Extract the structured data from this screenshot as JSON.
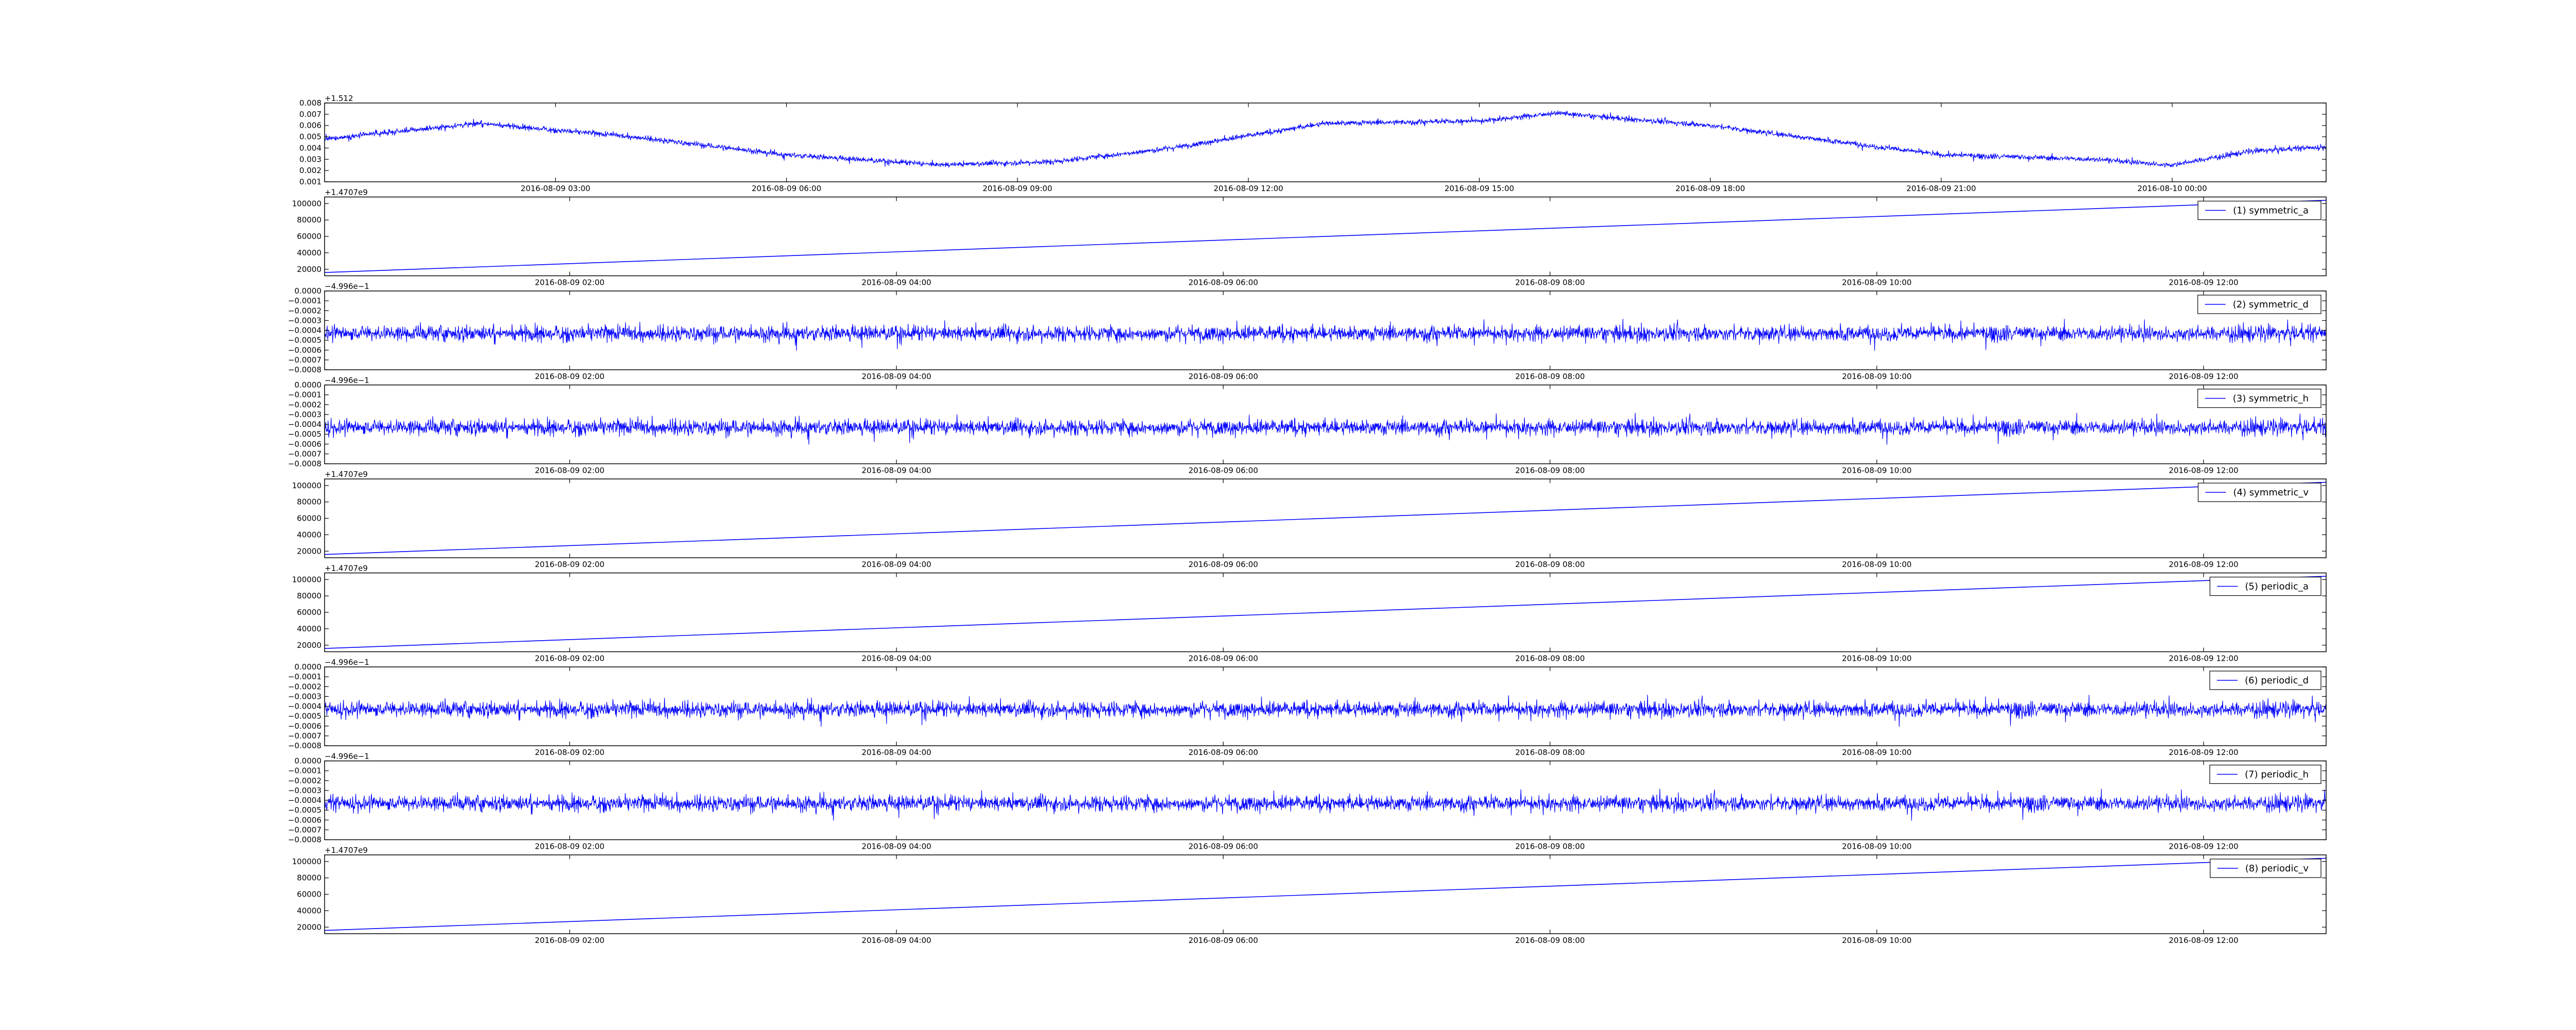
{
  "chart_data": [
    {
      "type": "line",
      "offset_text": "+1.512",
      "x_domain": [
        "2016-08-09 00:00",
        "2016-08-10 02:00"
      ],
      "x_ticks": [
        {
          "x": "2016-08-09 03:00",
          "label": "2016-08-09 03:00"
        },
        {
          "x": "2016-08-09 06:00",
          "label": "2016-08-09 06:00"
        },
        {
          "x": "2016-08-09 09:00",
          "label": "2016-08-09 09:00"
        },
        {
          "x": "2016-08-09 12:00",
          "label": "2016-08-09 12:00"
        },
        {
          "x": "2016-08-09 15:00",
          "label": "2016-08-09 15:00"
        },
        {
          "x": "2016-08-09 18:00",
          "label": "2016-08-09 18:00"
        },
        {
          "x": "2016-08-09 21:00",
          "label": "2016-08-09 21:00"
        },
        {
          "x": "2016-08-10 00:00",
          "label": "2016-08-10 00:00"
        }
      ],
      "ylim": [
        0.001,
        0.008
      ],
      "y_ticks": [
        "0.001",
        "0.002",
        "0.003",
        "0.004",
        "0.005",
        "0.006",
        "0.007",
        "0.008"
      ],
      "legend": "",
      "series": [
        {
          "kind": "noisy",
          "x": [
            "2016-08-09 00:00",
            "2016-08-09 02:00",
            "2016-08-09 04:00",
            "2016-08-09 06:00",
            "2016-08-09 08:00",
            "2016-08-09 09:30",
            "2016-08-09 11:00",
            "2016-08-09 13:00",
            "2016-08-09 15:00",
            "2016-08-09 16:00",
            "2016-08-09 18:00",
            "2016-08-09 21:00",
            "2016-08-09 23:00",
            "2016-08-10 00:00",
            "2016-08-10 01:00",
            "2016-08-10 02:00"
          ],
          "y": [
            0.0048,
            0.0062,
            0.005,
            0.0034,
            0.0025,
            0.0028,
            0.004,
            0.0062,
            0.0064,
            0.0071,
            0.006,
            0.0034,
            0.003,
            0.0025,
            0.0037,
            0.0041
          ],
          "noise": 0.0004
        }
      ]
    },
    {
      "type": "line",
      "offset_text": "+1.4707e9",
      "x_domain": [
        "2016-08-09 00:30",
        "2016-08-09 12:45"
      ],
      "x_ticks": [
        {
          "x": "2016-08-09 02:00",
          "label": "2016-08-09 02:00"
        },
        {
          "x": "2016-08-09 04:00",
          "label": "2016-08-09 04:00"
        },
        {
          "x": "2016-08-09 06:00",
          "label": "2016-08-09 06:00"
        },
        {
          "x": "2016-08-09 08:00",
          "label": "2016-08-09 08:00"
        },
        {
          "x": "2016-08-09 10:00",
          "label": "2016-08-09 10:00"
        },
        {
          "x": "2016-08-09 12:00",
          "label": "2016-08-09 12:00"
        }
      ],
      "ylim": [
        12000,
        108000
      ],
      "y_ticks": [
        "20000",
        "40000",
        "60000",
        "80000",
        "100000"
      ],
      "legend": "(1) symmetric_a",
      "series": [
        {
          "kind": "linear",
          "x": [
            "2016-08-09 00:30",
            "2016-08-09 12:45"
          ],
          "y": [
            16000,
            104000
          ]
        }
      ]
    },
    {
      "type": "line",
      "offset_text": "−4.996e−1",
      "x_domain": [
        "2016-08-09 00:30",
        "2016-08-09 12:45"
      ],
      "x_ticks": [
        {
          "x": "2016-08-09 02:00",
          "label": "2016-08-09 02:00"
        },
        {
          "x": "2016-08-09 04:00",
          "label": "2016-08-09 04:00"
        },
        {
          "x": "2016-08-09 06:00",
          "label": "2016-08-09 06:00"
        },
        {
          "x": "2016-08-09 08:00",
          "label": "2016-08-09 08:00"
        },
        {
          "x": "2016-08-09 10:00",
          "label": "2016-08-09 10:00"
        },
        {
          "x": "2016-08-09 12:00",
          "label": "2016-08-09 12:00"
        }
      ],
      "ylim": [
        -0.0008,
        0.0
      ],
      "y_ticks": [
        "−0.0008",
        "−0.0007",
        "−0.0006",
        "−0.0005",
        "−0.0004",
        "−0.0003",
        "−0.0002",
        "−0.0001",
        "0.0000"
      ],
      "legend": "(2) symmetric_d",
      "series": [
        {
          "kind": "noisy",
          "x": [
            "2016-08-09 00:30",
            "2016-08-09 12:45"
          ],
          "y": [
            -0.00043,
            -0.00043
          ],
          "noise": 0.00013
        }
      ]
    },
    {
      "type": "line",
      "offset_text": "−4.996e−1",
      "x_domain": [
        "2016-08-09 00:30",
        "2016-08-09 12:45"
      ],
      "x_ticks": [
        {
          "x": "2016-08-09 02:00",
          "label": "2016-08-09 02:00"
        },
        {
          "x": "2016-08-09 04:00",
          "label": "2016-08-09 04:00"
        },
        {
          "x": "2016-08-09 06:00",
          "label": "2016-08-09 06:00"
        },
        {
          "x": "2016-08-09 08:00",
          "label": "2016-08-09 08:00"
        },
        {
          "x": "2016-08-09 10:00",
          "label": "2016-08-09 10:00"
        },
        {
          "x": "2016-08-09 12:00",
          "label": "2016-08-09 12:00"
        }
      ],
      "ylim": [
        -0.0008,
        0.0
      ],
      "y_ticks": [
        "−0.0008",
        "−0.0007",
        "−0.0006",
        "−0.0005",
        "−0.0004",
        "−0.0003",
        "−0.0002",
        "−0.0001",
        "0.0000"
      ],
      "legend": "(3) symmetric_h",
      "series": [
        {
          "kind": "noisy",
          "x": [
            "2016-08-09 00:30",
            "2016-08-09 12:45"
          ],
          "y": [
            -0.00043,
            -0.00043
          ],
          "noise": 0.00013
        }
      ]
    },
    {
      "type": "line",
      "offset_text": "+1.4707e9",
      "x_domain": [
        "2016-08-09 00:30",
        "2016-08-09 12:45"
      ],
      "x_ticks": [
        {
          "x": "2016-08-09 02:00",
          "label": "2016-08-09 02:00"
        },
        {
          "x": "2016-08-09 04:00",
          "label": "2016-08-09 04:00"
        },
        {
          "x": "2016-08-09 06:00",
          "label": "2016-08-09 06:00"
        },
        {
          "x": "2016-08-09 08:00",
          "label": "2016-08-09 08:00"
        },
        {
          "x": "2016-08-09 10:00",
          "label": "2016-08-09 10:00"
        },
        {
          "x": "2016-08-09 12:00",
          "label": "2016-08-09 12:00"
        }
      ],
      "ylim": [
        12000,
        108000
      ],
      "y_ticks": [
        "20000",
        "40000",
        "60000",
        "80000",
        "100000"
      ],
      "legend": "(4) symmetric_v",
      "series": [
        {
          "kind": "linear",
          "x": [
            "2016-08-09 00:30",
            "2016-08-09 12:45"
          ],
          "y": [
            16000,
            104000
          ]
        }
      ]
    },
    {
      "type": "line",
      "offset_text": "+1.4707e9",
      "x_domain": [
        "2016-08-09 00:30",
        "2016-08-09 12:45"
      ],
      "x_ticks": [
        {
          "x": "2016-08-09 02:00",
          "label": "2016-08-09 02:00"
        },
        {
          "x": "2016-08-09 04:00",
          "label": "2016-08-09 04:00"
        },
        {
          "x": "2016-08-09 06:00",
          "label": "2016-08-09 06:00"
        },
        {
          "x": "2016-08-09 08:00",
          "label": "2016-08-09 08:00"
        },
        {
          "x": "2016-08-09 10:00",
          "label": "2016-08-09 10:00"
        },
        {
          "x": "2016-08-09 12:00",
          "label": "2016-08-09 12:00"
        }
      ],
      "ylim": [
        12000,
        108000
      ],
      "y_ticks": [
        "20000",
        "40000",
        "60000",
        "80000",
        "100000"
      ],
      "legend": "(5) periodic_a",
      "series": [
        {
          "kind": "linear",
          "x": [
            "2016-08-09 00:30",
            "2016-08-09 12:45"
          ],
          "y": [
            16000,
            104000
          ]
        }
      ]
    },
    {
      "type": "line",
      "offset_text": "−4.996e−1",
      "x_domain": [
        "2016-08-09 00:30",
        "2016-08-09 12:45"
      ],
      "x_ticks": [
        {
          "x": "2016-08-09 02:00",
          "label": "2016-08-09 02:00"
        },
        {
          "x": "2016-08-09 04:00",
          "label": "2016-08-09 04:00"
        },
        {
          "x": "2016-08-09 06:00",
          "label": "2016-08-09 06:00"
        },
        {
          "x": "2016-08-09 08:00",
          "label": "2016-08-09 08:00"
        },
        {
          "x": "2016-08-09 10:00",
          "label": "2016-08-09 10:00"
        },
        {
          "x": "2016-08-09 12:00",
          "label": "2016-08-09 12:00"
        }
      ],
      "ylim": [
        -0.0008,
        0.0
      ],
      "y_ticks": [
        "−0.0008",
        "−0.0007",
        "−0.0006",
        "−0.0005",
        "−0.0004",
        "−0.0003",
        "−0.0002",
        "−0.0001",
        "0.0000"
      ],
      "legend": "(6) periodic_d",
      "series": [
        {
          "kind": "noisy",
          "x": [
            "2016-08-09 00:30",
            "2016-08-09 12:45"
          ],
          "y": [
            -0.00043,
            -0.00043
          ],
          "noise": 0.00013
        }
      ]
    },
    {
      "type": "line",
      "offset_text": "−4.996e−1",
      "x_domain": [
        "2016-08-09 00:30",
        "2016-08-09 12:45"
      ],
      "x_ticks": [
        {
          "x": "2016-08-09 02:00",
          "label": "2016-08-09 02:00"
        },
        {
          "x": "2016-08-09 04:00",
          "label": "2016-08-09 04:00"
        },
        {
          "x": "2016-08-09 06:00",
          "label": "2016-08-09 06:00"
        },
        {
          "x": "2016-08-09 08:00",
          "label": "2016-08-09 08:00"
        },
        {
          "x": "2016-08-09 10:00",
          "label": "2016-08-09 10:00"
        },
        {
          "x": "2016-08-09 12:00",
          "label": "2016-08-09 12:00"
        }
      ],
      "ylim": [
        -0.0008,
        0.0
      ],
      "y_ticks": [
        "−0.0008",
        "−0.0007",
        "−0.0006",
        "−0.0005",
        "−0.0004",
        "−0.0003",
        "−0.0002",
        "−0.0001",
        "0.0000"
      ],
      "legend": "(7) periodic_h",
      "series": [
        {
          "kind": "noisy",
          "x": [
            "2016-08-09 00:30",
            "2016-08-09 12:45"
          ],
          "y": [
            -0.00043,
            -0.00043
          ],
          "noise": 0.00013
        }
      ]
    },
    {
      "type": "line",
      "offset_text": "+1.4707e9",
      "x_domain": [
        "2016-08-09 00:30",
        "2016-08-09 12:45"
      ],
      "x_ticks": [
        {
          "x": "2016-08-09 02:00",
          "label": "2016-08-09 02:00"
        },
        {
          "x": "2016-08-09 04:00",
          "label": "2016-08-09 04:00"
        },
        {
          "x": "2016-08-09 06:00",
          "label": "2016-08-09 06:00"
        },
        {
          "x": "2016-08-09 08:00",
          "label": "2016-08-09 08:00"
        },
        {
          "x": "2016-08-09 10:00",
          "label": "2016-08-09 10:00"
        },
        {
          "x": "2016-08-09 12:00",
          "label": "2016-08-09 12:00"
        }
      ],
      "ylim": [
        12000,
        108000
      ],
      "y_ticks": [
        "20000",
        "40000",
        "60000",
        "80000",
        "100000"
      ],
      "legend": "(8) periodic_v",
      "series": [
        {
          "kind": "linear",
          "x": [
            "2016-08-09 00:30",
            "2016-08-09 12:45"
          ],
          "y": [
            16000,
            104000
          ]
        }
      ]
    }
  ],
  "colors": {
    "line": "#0000ff",
    "axes": "#000000",
    "background": "#ffffff"
  }
}
